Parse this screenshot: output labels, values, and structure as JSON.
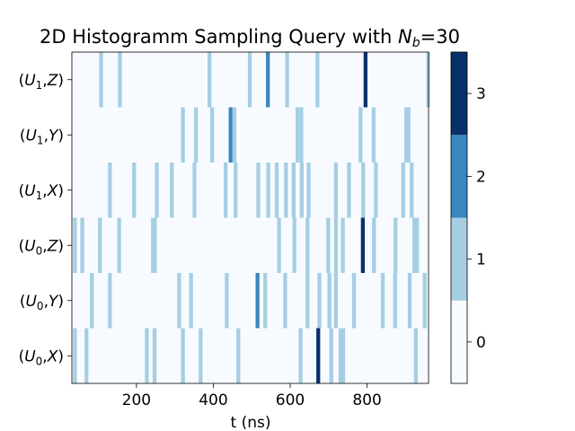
{
  "chart_data": {
    "type": "heatmap",
    "title_main": "2D Histogramm Sampling Query with ",
    "title_var": "N",
    "title_sub": "b",
    "title_value": "=30",
    "xlabel": "t (ns)",
    "ylabel": "",
    "xlim": [
      32,
      960
    ],
    "x_ticks": [
      200,
      400,
      600,
      800
    ],
    "bin_width": 10,
    "rows": [
      {
        "unit": "U",
        "index": "0",
        "axis": "X",
        "bins": [
          [
            35,
            1
          ],
          [
            65,
            1
          ],
          [
            222,
            1
          ],
          [
            242,
            1
          ],
          [
            316,
            1
          ],
          [
            362,
            1
          ],
          [
            460,
            1
          ],
          [
            622,
            1
          ],
          [
            668,
            3
          ],
          [
            702,
            1
          ],
          [
            726,
            1
          ],
          [
            733,
            1
          ],
          [
            922,
            1
          ]
        ]
      },
      {
        "unit": "U",
        "index": "0",
        "axis": "Y",
        "bins": [
          [
            79,
            1
          ],
          [
            126,
            1
          ],
          [
            306,
            1
          ],
          [
            337,
            1
          ],
          [
            430,
            1
          ],
          [
            510,
            2
          ],
          [
            530,
            1
          ],
          [
            582,
            1
          ],
          [
            640,
            1
          ],
          [
            671,
            1
          ],
          [
            697,
            1
          ],
          [
            714,
            1
          ],
          [
            761,
            1
          ],
          [
            836,
            1
          ],
          [
            868,
            1
          ],
          [
            906,
            1
          ],
          [
            945,
            1
          ]
        ]
      },
      {
        "unit": "U",
        "index": "0",
        "axis": "Z",
        "bins": [
          [
            35,
            1
          ],
          [
            54,
            1
          ],
          [
            100,
            1
          ],
          [
            150,
            1
          ],
          [
            238,
            1
          ],
          [
            243,
            1
          ],
          [
            566,
            1
          ],
          [
            606,
            1
          ],
          [
            640,
            1
          ],
          [
            694,
            1
          ],
          [
            714,
            1
          ],
          [
            732,
            1
          ],
          [
            784,
            3
          ],
          [
            813,
            1
          ],
          [
            869,
            1
          ],
          [
            918,
            1
          ],
          [
            925,
            1
          ]
        ]
      },
      {
        "unit": "U",
        "index": "1",
        "axis": "X",
        "bins": [
          [
            126,
            1
          ],
          [
            189,
            1
          ],
          [
            248,
            1
          ],
          [
            287,
            1
          ],
          [
            346,
            1
          ],
          [
            427,
            1
          ],
          [
            453,
            1
          ],
          [
            512,
            1
          ],
          [
            538,
            1
          ],
          [
            560,
            1
          ],
          [
            584,
            1
          ],
          [
            604,
            1
          ],
          [
            625,
            1
          ],
          [
            643,
            1
          ],
          [
            714,
            1
          ],
          [
            748,
            1
          ],
          [
            785,
            1
          ],
          [
            818,
            1
          ],
          [
            889,
            1
          ],
          [
            911,
            1
          ]
        ]
      },
      {
        "unit": "U",
        "index": "1",
        "axis": "Y",
        "bins": [
          [
            316,
            1
          ],
          [
            350,
            1
          ],
          [
            392,
            1
          ],
          [
            440,
            2
          ],
          [
            450,
            1
          ],
          [
            614,
            1
          ],
          [
            624,
            1
          ],
          [
            778,
            1
          ],
          [
            812,
            1
          ],
          [
            897,
            1
          ],
          [
            903,
            1
          ]
        ]
      },
      {
        "unit": "U",
        "index": "1",
        "axis": "Z",
        "bins": [
          [
            103,
            1
          ],
          [
            152,
            1
          ],
          [
            385,
            1
          ],
          [
            490,
            1
          ],
          [
            537,
            2
          ],
          [
            587,
            1
          ],
          [
            666,
            1
          ],
          [
            791,
            3
          ],
          [
            954,
            1
          ]
        ]
      }
    ],
    "colorbar": {
      "ticks": [
        0,
        1,
        2,
        3
      ],
      "range": [
        -0.5,
        3.5
      ],
      "colors": [
        "#f7fbff",
        "#a6cee3",
        "#3a87bf",
        "#08306b"
      ]
    },
    "grid": false
  }
}
